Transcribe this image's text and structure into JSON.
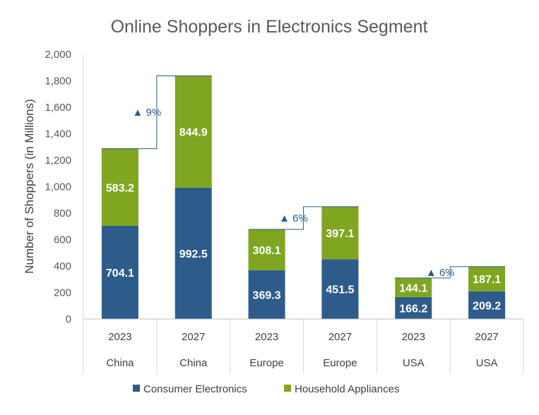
{
  "chart_data": {
    "type": "bar",
    "stacked": true,
    "title": "Online Shoppers in Electronics Segment",
    "ylabel": "Number of Shoppers (in Millions)",
    "ylim": [
      0,
      2000
    ],
    "yticks": [
      "0",
      "200",
      "400",
      "600",
      "800",
      "1,000",
      "1,200",
      "1,400",
      "1,600",
      "1,800",
      "2,000"
    ],
    "ytick_values": [
      0,
      200,
      400,
      600,
      800,
      1000,
      1200,
      1400,
      1600,
      1800,
      2000
    ],
    "categories": [
      {
        "year": "2023",
        "region": "China"
      },
      {
        "year": "2027",
        "region": "China"
      },
      {
        "year": "2023",
        "region": "Europe"
      },
      {
        "year": "2027",
        "region": "Europe"
      },
      {
        "year": "2023",
        "region": "USA"
      },
      {
        "year": "2027",
        "region": "USA"
      }
    ],
    "series": [
      {
        "name": "Consumer Electronics",
        "color": "#2E5C8A",
        "values": [
          704.1,
          992.5,
          369.3,
          451.5,
          166.2,
          209.2
        ],
        "labels": [
          "704.1",
          "992.5",
          "369.3",
          "451.5",
          "166.2",
          "209.2"
        ]
      },
      {
        "name": "Household Appliances",
        "color": "#7FA521",
        "values": [
          583.2,
          844.9,
          308.1,
          397.1,
          144.1,
          187.1
        ],
        "labels": [
          "583.2",
          "844.9",
          "308.1",
          "397.1",
          "144.1",
          "187.1"
        ]
      }
    ],
    "growth_annotations": [
      {
        "from": 0,
        "to": 1,
        "label": "▲ 9%"
      },
      {
        "from": 2,
        "to": 3,
        "label": "▲ 6%"
      },
      {
        "from": 4,
        "to": 5,
        "label": "▲ 6%"
      }
    ],
    "grid": false,
    "legend_position": "bottom"
  }
}
